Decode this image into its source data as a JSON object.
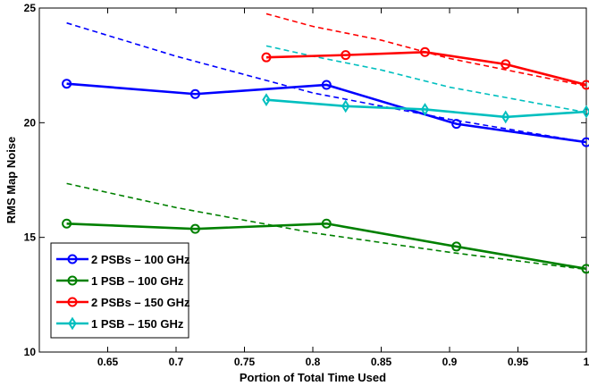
{
  "chart_data": {
    "type": "line",
    "xlabel": "Portion of Total Time Used",
    "ylabel": "RMS Map Noise",
    "xlim": [
      0.6,
      1.0
    ],
    "ylim": [
      10,
      25
    ],
    "xticks": [
      0.65,
      0.7,
      0.75,
      0.8,
      0.85,
      0.9,
      0.95,
      1.0
    ],
    "xtick_labels": [
      "0.65",
      "0.7",
      "0.75",
      "0.8",
      "0.85",
      "0.9",
      "0.95",
      "1"
    ],
    "yticks": [
      10,
      15,
      20,
      25
    ],
    "ytick_labels": [
      "10",
      "15",
      "20",
      "25"
    ],
    "grid": false,
    "legend_position": "bottom-left",
    "series": [
      {
        "name": "2 PSBs – 100 GHz",
        "color": "#0000ff",
        "marker": "circle",
        "x": [
          0.62,
          0.714,
          0.81,
          0.905,
          1.0
        ],
        "y": [
          21.7,
          21.25,
          21.65,
          19.95,
          19.15
        ]
      },
      {
        "name": "1 PSB – 100 GHz",
        "color": "#008000",
        "marker": "circle",
        "x": [
          0.62,
          0.714,
          0.81,
          0.905,
          1.0
        ],
        "y": [
          15.6,
          15.37,
          15.6,
          14.6,
          13.63
        ]
      },
      {
        "name": "2 PSBs – 150 GHz",
        "color": "#ff0000",
        "marker": "circle",
        "x": [
          0.766,
          0.824,
          0.882,
          0.941,
          1.0
        ],
        "y": [
          22.85,
          22.95,
          23.08,
          22.55,
          21.65
        ]
      },
      {
        "name": "1 PSB – 150 GHz",
        "color": "#00bfbf",
        "marker": "diamond",
        "x": [
          0.766,
          0.824,
          0.882,
          0.941,
          1.0
        ],
        "y": [
          21.0,
          20.72,
          20.58,
          20.25,
          20.48
        ]
      }
    ],
    "reference_curves": [
      {
        "color": "#0000ff",
        "x": [
          0.62,
          0.7,
          0.8,
          0.9,
          1.0
        ],
        "y": [
          24.35,
          22.9,
          21.3,
          20.15,
          19.15
        ]
      },
      {
        "color": "#008000",
        "x": [
          0.62,
          0.7,
          0.8,
          0.9,
          1.0
        ],
        "y": [
          17.35,
          16.3,
          15.2,
          14.35,
          13.6
        ]
      },
      {
        "color": "#ff0000",
        "x": [
          0.766,
          0.8,
          0.85,
          0.9,
          0.95,
          1.0
        ],
        "y": [
          24.75,
          24.2,
          23.6,
          22.8,
          22.2,
          21.6
        ]
      },
      {
        "color": "#00bfbf",
        "x": [
          0.766,
          0.8,
          0.85,
          0.9,
          0.95,
          1.0
        ],
        "y": [
          23.35,
          22.9,
          22.3,
          21.55,
          21.0,
          20.45
        ]
      }
    ]
  }
}
